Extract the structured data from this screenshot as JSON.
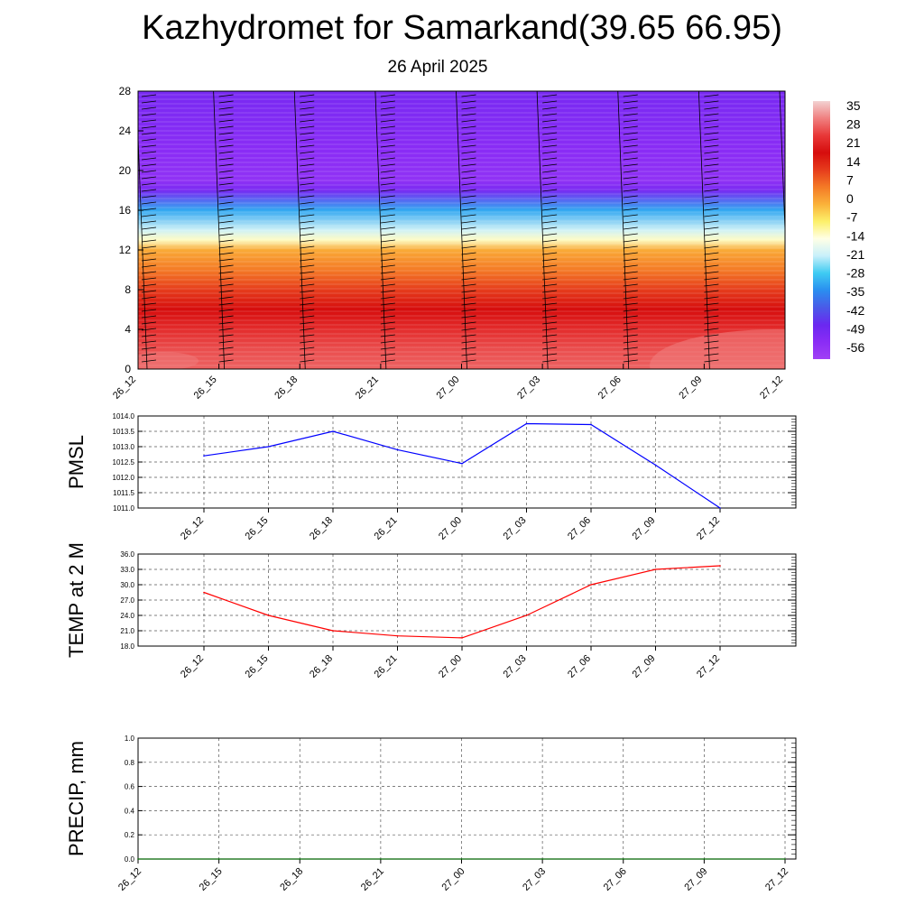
{
  "title": "Kazhydromet for Samarkand(39.65 66.95)",
  "subtitle": "26 April 2025",
  "chart_data": [
    {
      "type": "heatmap",
      "description_of_field": "temperature cross-section with wind barbs",
      "x_ticks": [
        "26_12",
        "26_15",
        "26_18",
        "26_21",
        "27_00",
        "27_03",
        "27_06",
        "27_09",
        "27_12"
      ],
      "y_ticks": [
        "0",
        "4",
        "8",
        "12",
        "16",
        "20",
        "24",
        "28"
      ],
      "ylim": [
        0,
        28
      ],
      "colorbar_labels": [
        "35",
        "28",
        "21",
        "14",
        "7",
        "0",
        "-7",
        "-14",
        "-21",
        "-28",
        "-35",
        "-42",
        "-49",
        "-56"
      ],
      "colorbar_range": [
        -63,
        42
      ],
      "colorbar_colors": [
        "#f2d2d2",
        "#f08080",
        "#e83838",
        "#d60d0d",
        "#e63c1c",
        "#f47a26",
        "#fab23a",
        "#fcf06a",
        "#ffffe6",
        "#c8f0fa",
        "#3ecbf2",
        "#2a8ef0",
        "#4a5ae8",
        "#6a28f0",
        "#8a2cf5",
        "#a040f5"
      ],
      "temperature_profile": [
        {
          "level": 0,
          "value": 32
        },
        {
          "level": 2,
          "value": 30
        },
        {
          "level": 4,
          "value": 26
        },
        {
          "level": 6,
          "value": 21
        },
        {
          "level": 8,
          "value": 14
        },
        {
          "level": 10,
          "value": 7
        },
        {
          "level": 12,
          "value": 1
        },
        {
          "level": 13,
          "value": -12
        },
        {
          "level": 14,
          "value": -20
        },
        {
          "level": 16,
          "value": -32
        },
        {
          "level": 18,
          "value": -52
        },
        {
          "level": 19,
          "value": -58
        },
        {
          "level": 22,
          "value": -56
        },
        {
          "level": 28,
          "value": -52
        }
      ]
    },
    {
      "type": "line",
      "ylabel": "PMSL",
      "x": [
        "26_12",
        "26_15",
        "26_18",
        "26_21",
        "27_00",
        "27_03",
        "27_06",
        "27_09",
        "27_12"
      ],
      "values": [
        1012.7,
        1013.0,
        1013.5,
        1012.9,
        1012.45,
        1013.75,
        1013.72,
        1012.4,
        1011.0
      ],
      "ylim": [
        1011.0,
        1014.0
      ],
      "y_ticks": [
        "1011.0",
        "1011.5",
        "1012.0",
        "1012.5",
        "1013.0",
        "1013.5",
        "1014.0"
      ],
      "color": "#0000ff",
      "grid": true
    },
    {
      "type": "line",
      "ylabel": "TEMP at 2 M",
      "x": [
        "26_12",
        "26_15",
        "26_18",
        "26_21",
        "27_00",
        "27_03",
        "27_06",
        "27_09",
        "27_12"
      ],
      "values": [
        28.5,
        24.0,
        21.0,
        20.0,
        19.6,
        24.0,
        30.0,
        33.0,
        33.7
      ],
      "ylim": [
        18.0,
        36.0
      ],
      "y_ticks": [
        "18.0",
        "21.0",
        "24.0",
        "27.0",
        "30.0",
        "33.0",
        "36.0"
      ],
      "color": "#ff0000",
      "grid": true
    },
    {
      "type": "line",
      "ylabel": "PRECIP, mm",
      "x": [
        "26_12",
        "26_15",
        "26_18",
        "26_21",
        "27_00",
        "27_03",
        "27_06",
        "27_09",
        "27_12"
      ],
      "values": [
        0,
        0,
        0,
        0,
        0,
        0,
        0,
        0,
        0
      ],
      "ylim": [
        0.0,
        1.0
      ],
      "y_ticks": [
        "0.0",
        "0.2",
        "0.4",
        "0.6",
        "0.8",
        "1.0"
      ],
      "color": "#006400",
      "grid": true
    }
  ]
}
